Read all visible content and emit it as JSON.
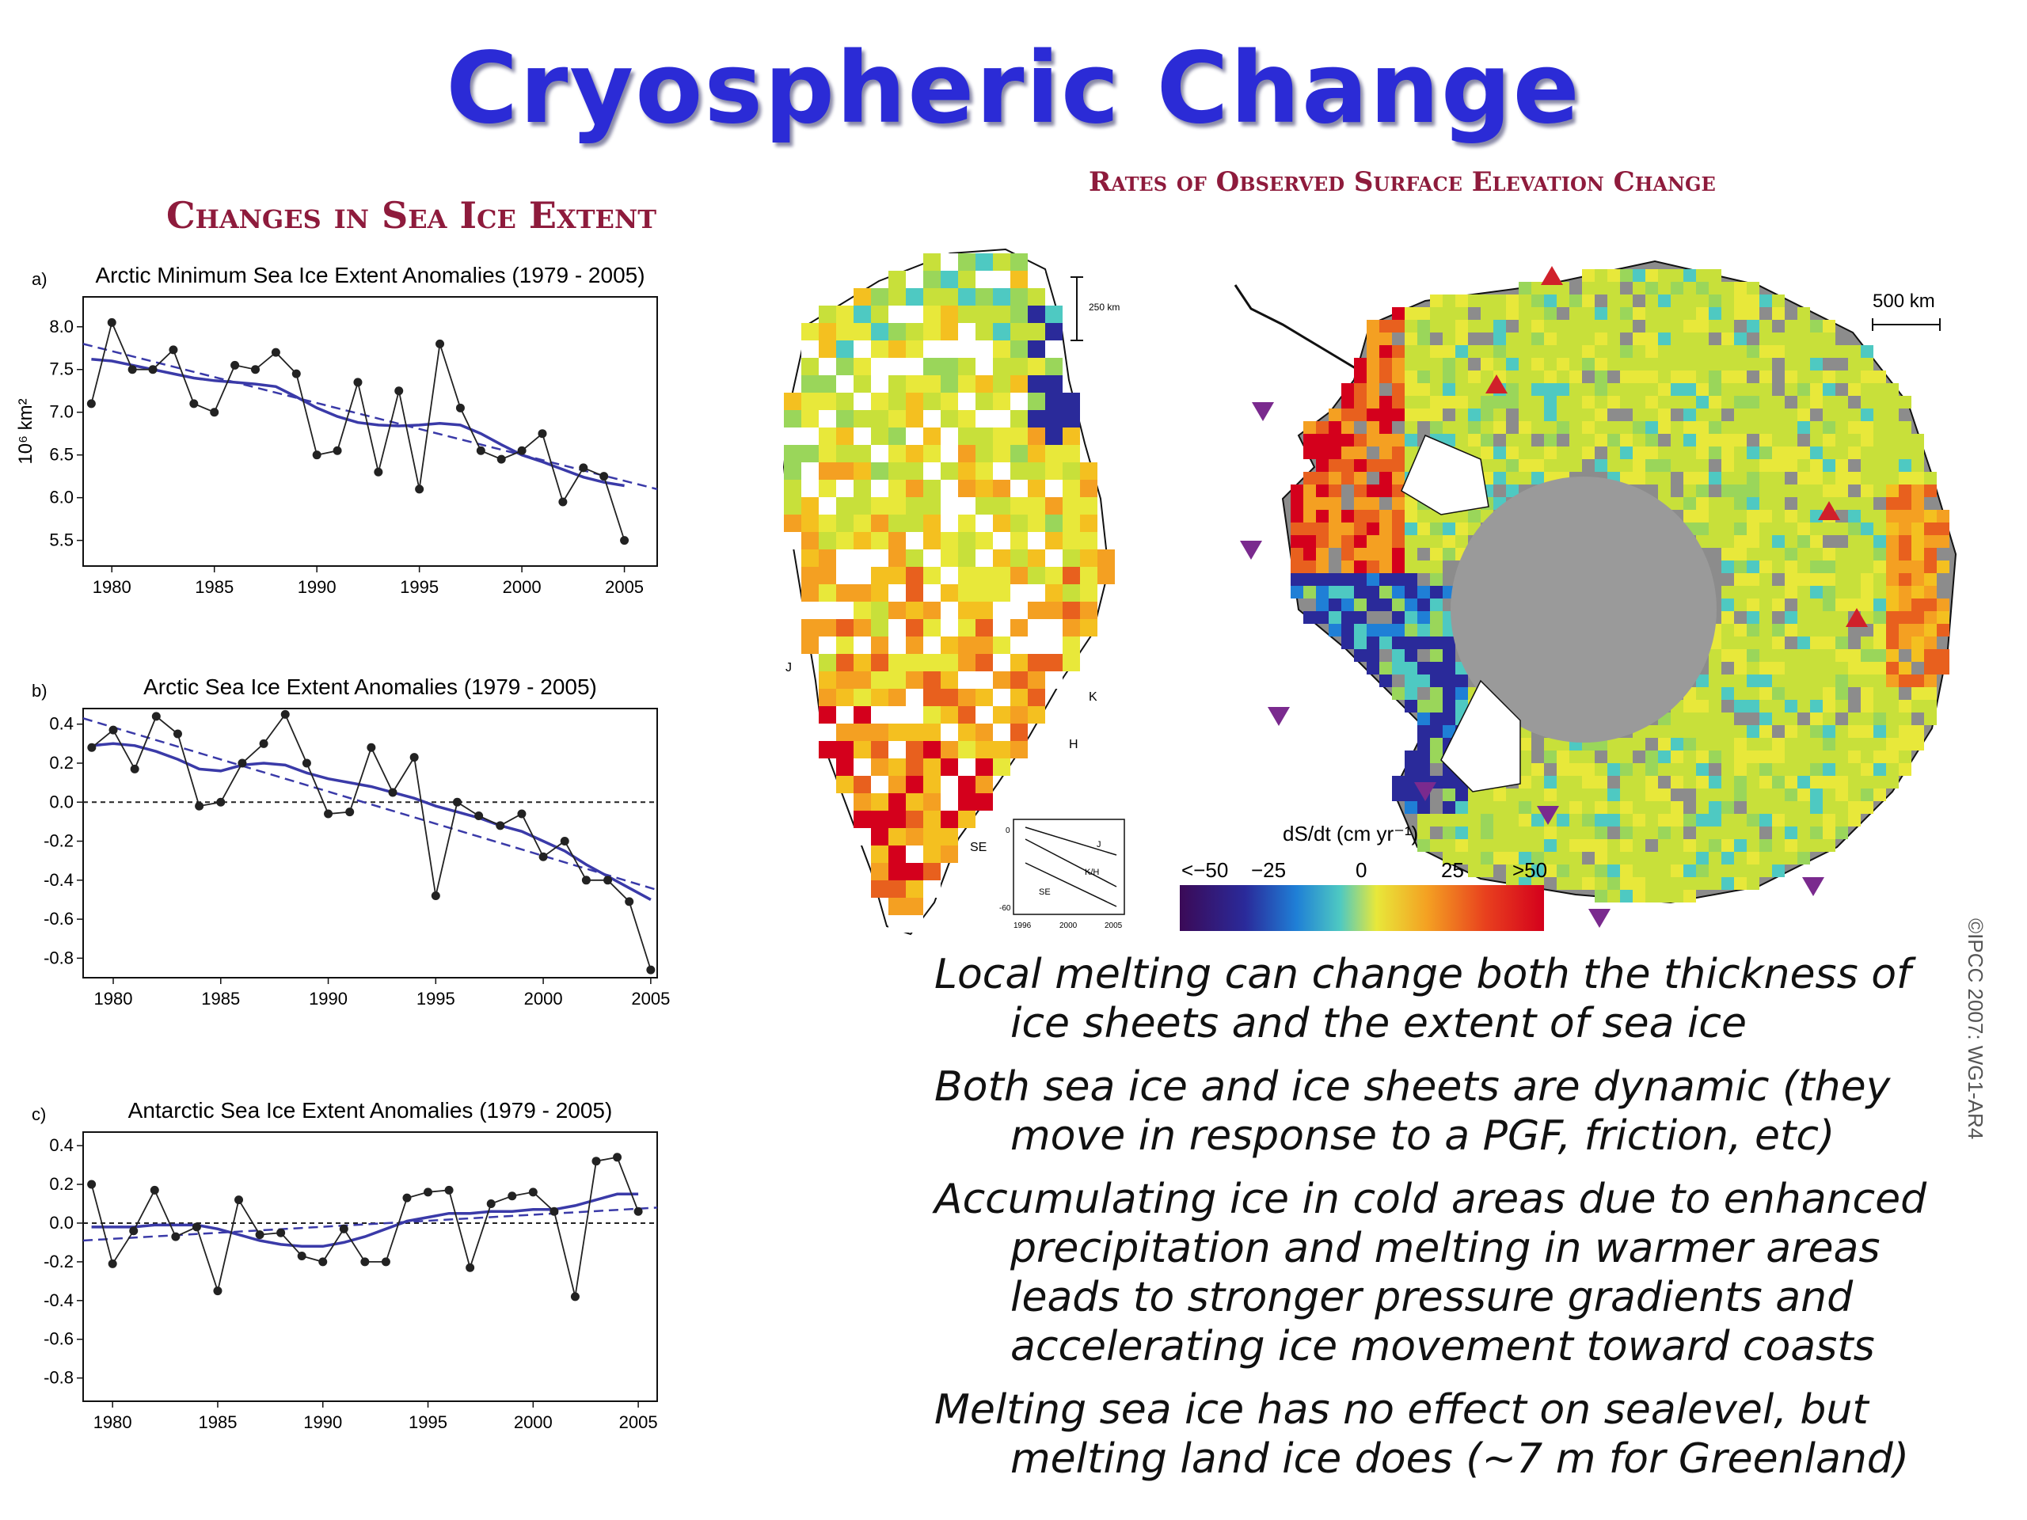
{
  "title": "Cryospheric Change",
  "sea_ice_heading": "Changes in Sea Ice Extent",
  "elevation_heading": "Rates of Observed Surface Elevation Change",
  "credit": "©IPCC 2007: WG1-AR4",
  "bullets": [
    "Local melting can change both the thickness of ice sheets and the extent of sea ice",
    "Both sea ice and ice sheets are dynamic (they move in response to a PGF, friction, etc)",
    "Accumulating ice in cold areas due to enhanced precipitation and melting in warmer areas leads to stronger pressure gradients and accelerating ice movement toward coasts",
    "Melting sea ice has no effect on sealevel, but melting land ice does (~7 m for Greenland)"
  ],
  "colorbar": {
    "label": "dS/dt (cm yr⁻¹)",
    "ticks": [
      "<−50",
      "−25",
      "0",
      "25",
      ">50"
    ]
  },
  "map_labels": {
    "scale_greenland": "250 km",
    "scale_antarctica": "500 km",
    "greenland_points": [
      "J",
      "K",
      "H",
      "SE"
    ],
    "inset_series": [
      "J",
      "K/H",
      "SE"
    ],
    "inset_y_ticks": [
      "0",
      "-60"
    ],
    "inset_x_ticks": [
      "1996",
      "2000",
      "2005"
    ]
  },
  "colors": {
    "title": "#2b2bd6",
    "heading": "#8e1b3c",
    "smooth": "#3a3aa8",
    "triangle_up": "#d0202a",
    "triangle_down": "#7a2a8e"
  },
  "chart_data": [
    {
      "type": "line",
      "panel": "a)",
      "title": "Arctic Minimum Sea Ice Extent Anomalies (1979 - 2005)",
      "ylabel": "10⁶ km²",
      "xlim": [
        1978.6,
        2006.6
      ],
      "ylim": [
        5.2,
        8.35
      ],
      "yticks": [
        5.5,
        6.0,
        6.5,
        7.0,
        7.5,
        8.0
      ],
      "yticklabels": [
        "5.5",
        "6.0",
        "6.5",
        "7.0",
        "7.5",
        "8.0"
      ],
      "xticks": [
        1980,
        1985,
        1990,
        1995,
        2000,
        2005
      ],
      "x": [
        1979,
        1980,
        1981,
        1982,
        1983,
        1984,
        1985,
        1986,
        1987,
        1988,
        1989,
        1990,
        1991,
        1992,
        1993,
        1994,
        1995,
        1996,
        1997,
        1998,
        1999,
        2000,
        2001,
        2002,
        2003,
        2004,
        2005
      ],
      "values": [
        7.1,
        8.05,
        7.5,
        7.5,
        7.73,
        7.1,
        7.0,
        7.55,
        7.5,
        7.7,
        7.45,
        6.5,
        6.55,
        7.35,
        6.3,
        7.25,
        6.1,
        7.8,
        7.05,
        6.55,
        6.45,
        6.55,
        6.75,
        5.95,
        6.35,
        6.25,
        5.5
      ],
      "smooth": [
        7.62,
        7.6,
        7.55,
        7.5,
        7.45,
        7.4,
        7.37,
        7.35,
        7.33,
        7.3,
        7.18,
        7.05,
        6.95,
        6.88,
        6.85,
        6.84,
        6.85,
        6.87,
        6.85,
        6.75,
        6.62,
        6.5,
        6.42,
        6.33,
        6.24,
        6.18,
        6.14
      ],
      "trend": [
        [
          1978.6,
          7.8
        ],
        [
          2006.6,
          6.1
        ]
      ],
      "zero_line": false
    },
    {
      "type": "line",
      "panel": "b)",
      "title": "Arctic Sea Ice Extent Anomalies (1979 - 2005)",
      "ylabel": "",
      "xlim": [
        1978.6,
        2005.3
      ],
      "ylim": [
        -0.9,
        0.48
      ],
      "yticks": [
        -0.8,
        -0.6,
        -0.4,
        -0.2,
        0.0,
        0.2,
        0.4
      ],
      "yticklabels": [
        "-0.8",
        "-0.6",
        "-0.4",
        "-0.2",
        "0.0",
        "0.2",
        "0.4"
      ],
      "xticks": [
        1980,
        1985,
        1990,
        1995,
        2000,
        2005
      ],
      "x": [
        1979,
        1980,
        1981,
        1982,
        1983,
        1984,
        1985,
        1986,
        1987,
        1988,
        1989,
        1990,
        1991,
        1992,
        1993,
        1994,
        1995,
        1996,
        1997,
        1998,
        1999,
        2000,
        2001,
        2002,
        2003,
        2004,
        2005
      ],
      "values": [
        0.28,
        0.37,
        0.17,
        0.44,
        0.35,
        -0.02,
        0.0,
        0.2,
        0.3,
        0.45,
        0.2,
        -0.06,
        -0.05,
        0.28,
        0.05,
        0.23,
        -0.48,
        0.0,
        -0.07,
        -0.12,
        -0.06,
        -0.28,
        -0.2,
        -0.4,
        -0.4,
        -0.51,
        -0.86
      ],
      "smooth": [
        0.29,
        0.3,
        0.29,
        0.26,
        0.22,
        0.17,
        0.16,
        0.19,
        0.2,
        0.19,
        0.15,
        0.12,
        0.1,
        0.08,
        0.05,
        0.02,
        -0.02,
        -0.05,
        -0.08,
        -0.12,
        -0.15,
        -0.2,
        -0.25,
        -0.32,
        -0.38,
        -0.44,
        -0.5
      ],
      "trend": [
        [
          1978.6,
          0.43
        ],
        [
          2005.3,
          -0.45
        ]
      ],
      "zero_line": true
    },
    {
      "type": "line",
      "panel": "c)",
      "title": "Antarctic Sea Ice Extent Anomalies (1979 - 2005)",
      "ylabel": "",
      "xlim": [
        1978.6,
        2005.9
      ],
      "ylim": [
        -0.92,
        0.47
      ],
      "yticks": [
        -0.8,
        -0.6,
        -0.4,
        -0.2,
        0.0,
        0.2,
        0.4
      ],
      "yticklabels": [
        "-0.8",
        "-0.6",
        "-0.4",
        "-0.2",
        "0.0",
        "0.2",
        "0.4"
      ],
      "xticks": [
        1980,
        1985,
        1990,
        1995,
        2000,
        2005
      ],
      "x": [
        1979,
        1980,
        1981,
        1982,
        1983,
        1984,
        1985,
        1986,
        1987,
        1988,
        1989,
        1990,
        1991,
        1992,
        1993,
        1994,
        1995,
        1996,
        1997,
        1998,
        1999,
        2000,
        2001,
        2002,
        2003,
        2004,
        2005
      ],
      "values": [
        0.2,
        -0.21,
        -0.04,
        0.17,
        -0.07,
        -0.02,
        -0.35,
        0.12,
        -0.06,
        -0.05,
        -0.17,
        -0.2,
        -0.03,
        -0.2,
        -0.2,
        0.13,
        0.16,
        0.17,
        -0.23,
        0.1,
        0.14,
        0.16,
        0.06,
        -0.38,
        0.32,
        0.34,
        0.06
      ],
      "smooth": [
        -0.02,
        -0.02,
        -0.02,
        -0.01,
        -0.01,
        -0.01,
        -0.03,
        -0.06,
        -0.09,
        -0.11,
        -0.12,
        -0.12,
        -0.1,
        -0.07,
        -0.03,
        0.01,
        0.03,
        0.05,
        0.05,
        0.06,
        0.06,
        0.07,
        0.07,
        0.09,
        0.12,
        0.15,
        0.15
      ],
      "trend": [
        [
          1978.6,
          -0.09
        ],
        [
          2005.9,
          0.08
        ]
      ],
      "zero_line": true
    }
  ]
}
